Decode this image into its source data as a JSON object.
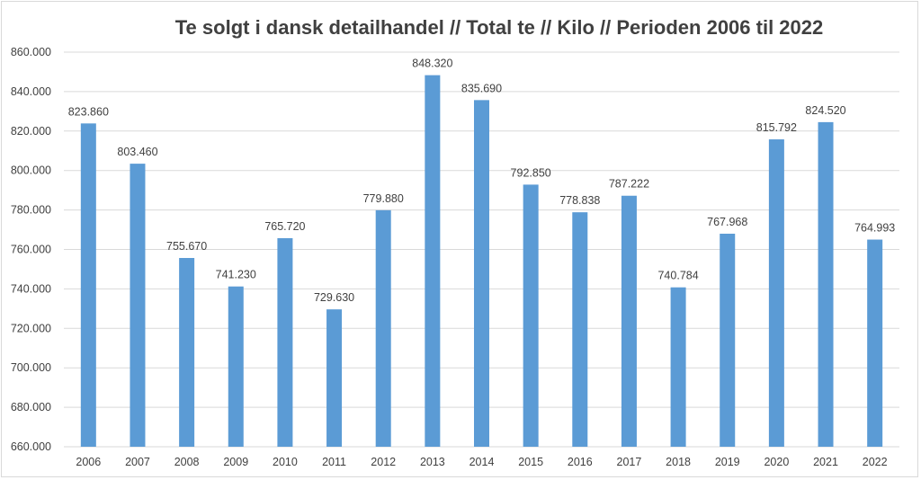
{
  "chart_data": {
    "type": "bar",
    "title": "Te solgt i dansk detailhandel // Total te // Kilo // Perioden 2006 til 2022",
    "xlabel": "",
    "ylabel": "",
    "ylim": [
      660000,
      860000
    ],
    "ytick_step": 20000,
    "grid": true,
    "legend": "none",
    "bar_color": "#5b9bd5",
    "grid_color": "#d9d9d9",
    "categories": [
      "2006",
      "2007",
      "2008",
      "2009",
      "2010",
      "2011",
      "2012",
      "2013",
      "2014",
      "2015",
      "2016",
      "2017",
      "2018",
      "2019",
      "2020",
      "2021",
      "2022"
    ],
    "values": [
      823860,
      803460,
      755670,
      741230,
      765720,
      729630,
      779880,
      848320,
      835690,
      792850,
      778838,
      787222,
      740784,
      767968,
      815792,
      824520,
      764993
    ],
    "data_labels": [
      "823.860",
      "803.460",
      "755.670",
      "741.230",
      "765.720",
      "729.630",
      "779.880",
      "848.320",
      "835.690",
      "792.850",
      "778.838",
      "787.222",
      "740.784",
      "767.968",
      "815.792",
      "824.520",
      "764.993"
    ],
    "ytick_labels": [
      "660.000",
      "680.000",
      "700.000",
      "720.000",
      "740.000",
      "760.000",
      "780.000",
      "800.000",
      "820.000",
      "840.000",
      "860.000"
    ]
  }
}
